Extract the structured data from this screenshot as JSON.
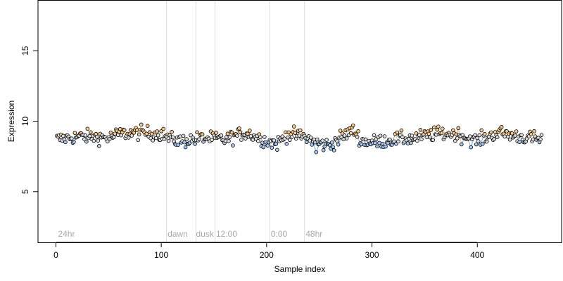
{
  "chart_data": {
    "type": "scatter",
    "title": "",
    "xlabel": "Sample index",
    "ylabel": "Expression",
    "xlim": [
      -17,
      480
    ],
    "ylim": [
      1.4,
      18.6
    ],
    "xticks": [
      0,
      100,
      200,
      300,
      400
    ],
    "yticks": [
      5,
      10,
      15
    ],
    "grid": false,
    "vlines": [
      {
        "x": 105
      },
      {
        "x": 133
      },
      {
        "x": 151
      },
      {
        "x": 203
      },
      {
        "x": 236
      }
    ],
    "annotations": [
      {
        "text": "24hr",
        "x": 2,
        "y": 2
      },
      {
        "text": "dawn",
        "x": 106,
        "y": 2
      },
      {
        "text": "dusk",
        "x": 133,
        "y": 2
      },
      {
        "text": "12:00",
        "x": 152,
        "y": 2
      },
      {
        "text": "0:00",
        "x": 204,
        "y": 2
      },
      {
        "text": "48hr",
        "x": 237,
        "y": 2
      }
    ],
    "point_colors": {
      "high": "#f5c88c",
      "low": "#a8c8f0",
      "mid": "#dddddd",
      "outline": "#000000",
      "trend": "#4a90d9"
    },
    "n_points": 461,
    "profile": [
      [
        0,
        8.7
      ],
      [
        20,
        8.9
      ],
      [
        40,
        8.9
      ],
      [
        50,
        8.8
      ],
      [
        60,
        9.1
      ],
      [
        80,
        9.2
      ],
      [
        100,
        9.1
      ],
      [
        110,
        8.7
      ],
      [
        120,
        8.6
      ],
      [
        140,
        8.8
      ],
      [
        160,
        8.7
      ],
      [
        180,
        9.2
      ],
      [
        200,
        8.6
      ],
      [
        210,
        8.4
      ],
      [
        220,
        9.1
      ],
      [
        235,
        8.9
      ],
      [
        250,
        8.4
      ],
      [
        260,
        8.3
      ],
      [
        270,
        8.8
      ],
      [
        282,
        9.4
      ],
      [
        290,
        8.6
      ],
      [
        300,
        8.5
      ],
      [
        320,
        8.7
      ],
      [
        340,
        8.8
      ],
      [
        360,
        9.1
      ],
      [
        380,
        9.1
      ],
      [
        400,
        8.6
      ],
      [
        420,
        9.2
      ],
      [
        440,
        8.9
      ],
      [
        461,
        8.7
      ]
    ],
    "noise_sd": 0.25
  }
}
